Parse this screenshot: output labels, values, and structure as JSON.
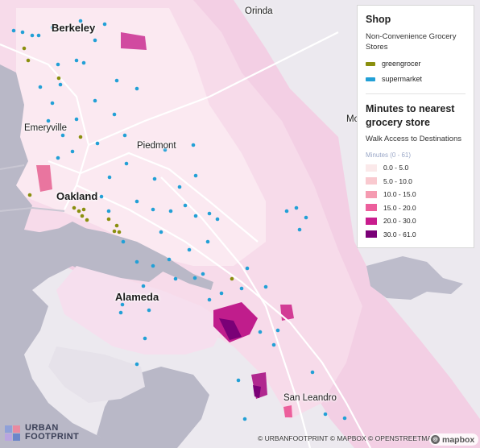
{
  "map": {
    "places": {
      "orinda": "Orinda",
      "berkeley": "Berkeley",
      "emeryville": "Emeryville",
      "piedmont": "Piedmont",
      "oakland": "Oakland",
      "alameda": "Alameda",
      "san_leandro": "San Leandro",
      "cut_off": "Mo"
    },
    "colors": {
      "water": "#b9b8c7",
      "land": "#ece9ef",
      "greengrocer": "#8a8f0e",
      "supermarket": "#22a0d6"
    }
  },
  "legend": {
    "shop_title": "Shop",
    "shop_subtitle": "Non-Convenience Grocery Stores",
    "shop_items": [
      {
        "label": "greengrocer",
        "color": "#8a8f0e"
      },
      {
        "label": "supermarket",
        "color": "#22a0d6"
      }
    ],
    "walk_title": "Minutes to nearest grocery store",
    "walk_subtitle": "Walk Access to Destinations",
    "range_label": "Minutes (0 - 61)",
    "bins": [
      {
        "label": "0.0 - 5.0",
        "color": "#fbe9ea"
      },
      {
        "label": "5.0 - 10.0",
        "color": "#f9c9cf"
      },
      {
        "label": "10.0 - 15.0",
        "color": "#f59bb1"
      },
      {
        "label": "15.0 - 20.0",
        "color": "#ec5f9c"
      },
      {
        "label": "20.0 - 30.0",
        "color": "#c81c8d"
      },
      {
        "label": "30.0 - 61.0",
        "color": "#7a0077"
      }
    ]
  },
  "branding": {
    "logo_line1": "URBAN",
    "logo_line2": "FOOTPRINT",
    "attribution": "© URBANFOOTPRINT © MAPBOX © OPENSTREETMAP",
    "mapbox": "mapbox"
  }
}
